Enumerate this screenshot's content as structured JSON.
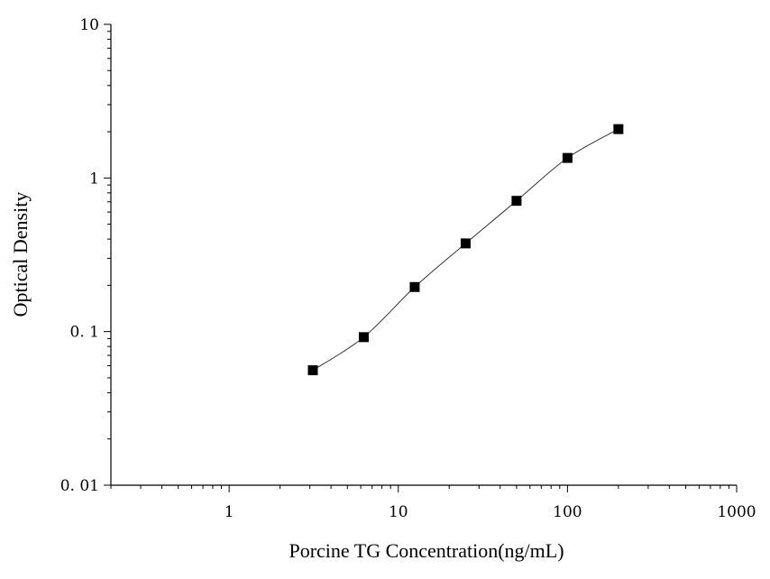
{
  "chart_data": {
    "type": "scatter",
    "title": "",
    "xlabel": "Porcine TG Concentration(ng/mL)",
    "ylabel": "Optical Density",
    "xscale": "log",
    "yscale": "log",
    "xlim": [
      0.2,
      1000
    ],
    "ylim": [
      0.01,
      10
    ],
    "xticks": [
      1,
      10,
      100,
      1000
    ],
    "xtick_labels": [
      "1",
      "10",
      "100",
      "1000"
    ],
    "yticks": [
      0.01,
      0.1,
      1,
      10
    ],
    "ytick_labels": [
      "0. 01",
      "0. 1",
      "1",
      "10"
    ],
    "grid": false,
    "legend": "none",
    "series": [
      {
        "x": [
          3.125,
          6.25,
          12.5,
          25,
          50,
          100,
          200
        ],
        "y": [
          0.056,
          0.092,
          0.195,
          0.375,
          0.71,
          1.35,
          2.08
        ],
        "marker": "square",
        "line": "smooth",
        "color": "#000000"
      }
    ]
  }
}
